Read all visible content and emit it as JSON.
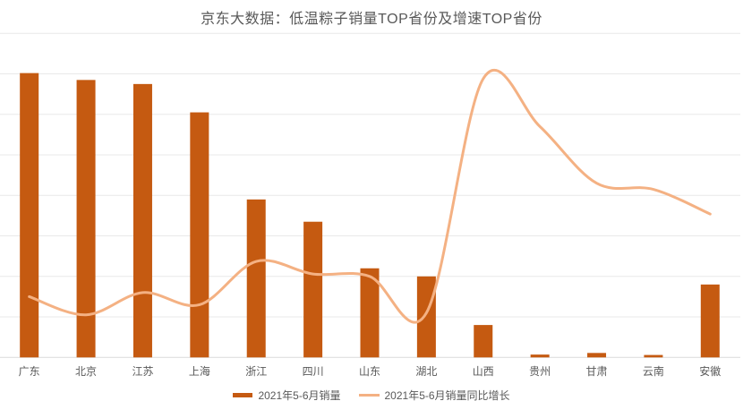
{
  "title": "京东大数据：低温粽子销量TOP省份及增速TOP省份",
  "colors": {
    "background": "#FFFFFF",
    "bar": "#C55A11",
    "line": "#F4B183",
    "grid": "#E9E9E9",
    "axis": "#DADADA",
    "text": "#595959"
  },
  "legend": {
    "items": [
      {
        "label": "2021年5-6月销量",
        "type": "bar",
        "color": "#C55A11"
      },
      {
        "label": "2021年5-6月销量同比增长",
        "type": "line",
        "color": "#F4B183"
      }
    ]
  },
  "chart_data": {
    "type": "combo",
    "title": "京东大数据：低温粽子销量TOP省份及增速TOP省份",
    "categories": [
      "广东",
      "北京",
      "江苏",
      "上海",
      "浙江",
      "四川",
      "山东",
      "湖北",
      "山西",
      "贵州",
      "甘肃",
      "云南",
      "安徽"
    ],
    "series": [
      {
        "name": "2021年5-6月销量",
        "type": "bar",
        "color": "#C55A11",
        "values": [
          70.2,
          68.5,
          67.5,
          60.5,
          39,
          33.5,
          22,
          20,
          8,
          0.7,
          1.1,
          0.6,
          18
        ]
      },
      {
        "name": "2021年5-6月销量同比增长",
        "type": "line",
        "smooth": true,
        "color": "#F4B183",
        "values": [
          15,
          10.5,
          16,
          13,
          23.7,
          20.6,
          20,
          11,
          68.8,
          57,
          43,
          41.5,
          35.4
        ]
      }
    ],
    "xlabel": "",
    "ylabel": "",
    "ylim": [
      0,
      80
    ],
    "grid_step": 10,
    "grid": true,
    "legend_position": "bottom",
    "note": "y-axis has no visible tick labels; series values are estimated relative units where one gridline interval = 10"
  }
}
